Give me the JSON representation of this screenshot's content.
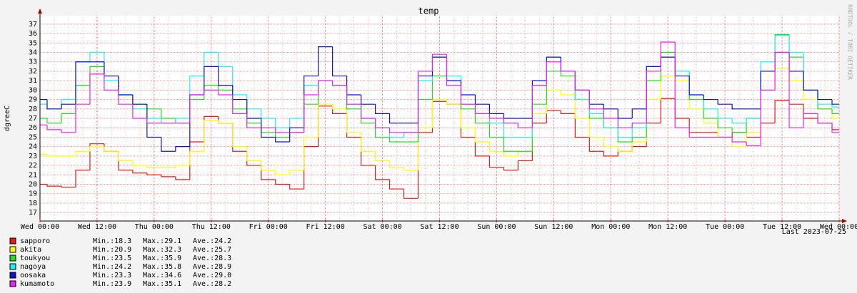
{
  "chart_data": {
    "type": "step-line",
    "title": "temp",
    "y_label": "dgreeC",
    "footer": "Last 2023-07-25",
    "side_text": "RRDTOOL / TOBI OETIKER",
    "categories": [
      "Wed 00:00",
      null,
      null,
      null,
      "Wed 12:00",
      null,
      null,
      null,
      "Thu 00:00",
      null,
      null,
      null,
      "Thu 12:00",
      null,
      null,
      null,
      "Fri 00:00",
      null,
      null,
      null,
      "Fri 12:00",
      null,
      null,
      null,
      "Sat 00:00",
      null,
      null,
      null,
      "Sat 12:00",
      null,
      null,
      null,
      "Sun 00:00",
      null,
      null,
      null,
      "Sun 12:00",
      null,
      null,
      null,
      "Mon 00:00",
      null,
      null,
      null,
      "Mon 12:00",
      null,
      null,
      null,
      "Tue 00:00",
      null,
      null,
      null,
      "Tue 12:00",
      null,
      null,
      null,
      "Wed 00:00"
    ],
    "ylim": [
      16.1,
      37.9
    ],
    "yticks": [
      17,
      18,
      19,
      20,
      21,
      22,
      23,
      24,
      25,
      26,
      27,
      28,
      29,
      30,
      31,
      32,
      33,
      34,
      35,
      36,
      37
    ],
    "grid": true,
    "series": [
      {
        "name": "sapporo",
        "color": "#e41a1c",
        "stats": [
          "Min.:18.3",
          "Max.:29.1",
          "Ave.:24.2"
        ],
        "values": [
          20,
          19.8,
          19.7,
          21.5,
          24.3,
          23.5,
          21.5,
          21.2,
          21,
          20.8,
          20.5,
          24.5,
          27.2,
          26.5,
          23.5,
          22,
          20.5,
          20,
          19.5,
          24,
          28.3,
          27.5,
          25,
          22,
          20.5,
          19.5,
          18.5,
          25.5,
          28.8,
          28.5,
          25,
          23,
          21.8,
          21.5,
          22.5,
          26.5,
          27.8,
          27.5,
          25,
          23.5,
          23,
          23.5,
          24,
          26.5,
          29.1,
          27,
          25.5,
          25.5,
          25,
          25.5,
          25,
          26.5,
          28.9,
          28.5,
          27,
          26.5,
          25.8
        ]
      },
      {
        "name": "akita",
        "color": "#ffff00",
        "stats": [
          "Min.:20.9",
          "Max.:32.3",
          "Ave.:25.7"
        ],
        "values": [
          23.2,
          23,
          23,
          23.5,
          24,
          23.5,
          22.5,
          22,
          21.8,
          21.8,
          22,
          23.5,
          26.8,
          26.5,
          24,
          22.5,
          21.5,
          21,
          21.5,
          25,
          28.5,
          28,
          25.5,
          23.5,
          22.5,
          21.8,
          21.5,
          26,
          29,
          28.5,
          26,
          24.5,
          23.5,
          23,
          23.5,
          27.5,
          30,
          29.5,
          27,
          25,
          24,
          23.5,
          24.5,
          29,
          31.5,
          31,
          28,
          26.5,
          25,
          24,
          25.5,
          30,
          32.3,
          31,
          29,
          28,
          27
        ]
      },
      {
        "name": "toukyou",
        "color": "#22dd22",
        "stats": [
          "Min.:23.5",
          "Max.:35.9",
          "Ave.:28.3"
        ],
        "values": [
          27,
          26.5,
          27.5,
          30.5,
          32.5,
          31.5,
          29.5,
          28.5,
          28,
          27,
          26.5,
          29,
          30.5,
          30,
          28,
          26.5,
          25.5,
          25,
          25.5,
          28.5,
          31,
          30.5,
          28,
          26.5,
          25,
          24.5,
          24.5,
          29,
          31.5,
          31,
          28,
          26.5,
          25,
          23.5,
          23.5,
          28.5,
          32,
          31.5,
          29,
          27,
          26,
          24.5,
          25,
          31,
          34,
          32,
          29,
          27,
          26,
          25.5,
          27,
          32,
          35.9,
          33.5,
          30,
          28,
          27.5
        ]
      },
      {
        "name": "nagoya",
        "color": "#22eeee",
        "stats": [
          "Min.:24.2",
          "Max.:35.8",
          "Ave.:28.9"
        ],
        "values": [
          28.5,
          28,
          29,
          33,
          34,
          31,
          29.5,
          28,
          27,
          26.5,
          27,
          31.5,
          34,
          32.5,
          29.5,
          28,
          27,
          26,
          27,
          30.5,
          31,
          30.5,
          28.5,
          27,
          26,
          25,
          25.5,
          31,
          33.5,
          31.5,
          28.5,
          27.5,
          26.5,
          25,
          25,
          30.5,
          33.5,
          32,
          29,
          27.5,
          26,
          25,
          26,
          32.5,
          33.5,
          32,
          29.5,
          28,
          27,
          26.5,
          27,
          33,
          35.8,
          34,
          30,
          28.5,
          28.2
        ]
      },
      {
        "name": "oosaka",
        "color": "#1111cc",
        "stats": [
          "Min.:23.3",
          "Max.:34.6",
          "Ave.:29.0"
        ],
        "values": [
          29,
          28,
          28.5,
          33,
          33,
          31.5,
          29.5,
          28.5,
          25,
          23.5,
          24,
          29.5,
          32.5,
          30.5,
          29,
          27,
          25,
          24.5,
          26,
          31.5,
          34.6,
          31.5,
          29.5,
          28.5,
          27.5,
          26.5,
          26.5,
          31.5,
          33.5,
          31,
          29.5,
          28.5,
          27.5,
          27,
          27,
          31,
          33.5,
          32,
          30,
          28.5,
          28,
          27,
          28,
          32.5,
          33.5,
          31.5,
          29.5,
          29,
          28.5,
          28,
          28,
          32,
          34,
          32,
          30,
          29,
          28.5
        ]
      },
      {
        "name": "kumamoto",
        "color": "#ee22ee",
        "stats": [
          "Min.:23.9",
          "Max.:35.1",
          "Ave.:28.2"
        ],
        "values": [
          26.3,
          25.8,
          25.5,
          28.5,
          31.7,
          30,
          28.5,
          27,
          26.5,
          26.5,
          26.5,
          29.5,
          30,
          29.5,
          27.5,
          26,
          26,
          25.5,
          25.5,
          29.5,
          31,
          30.5,
          28.5,
          27,
          26,
          25.5,
          25.5,
          32,
          33.8,
          30.5,
          28.5,
          27.5,
          27,
          26.5,
          26,
          30.5,
          33,
          32,
          30,
          28,
          27,
          26,
          26.5,
          32,
          35.1,
          26,
          25,
          25,
          25,
          24.5,
          24.1,
          30,
          34,
          26,
          27.5,
          26.5,
          25.5
        ]
      }
    ]
  }
}
